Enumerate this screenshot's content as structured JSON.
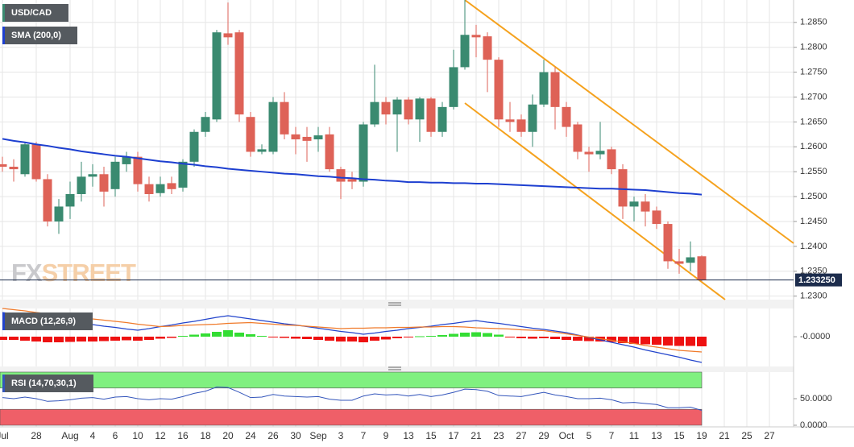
{
  "chart_data": [
    {
      "type": "candlestick",
      "title": "USD/CAD",
      "watermark": [
        "FX",
        "STREET"
      ],
      "categories": [
        "Jul",
        null,
        null,
        "28",
        null,
        null,
        "Aug",
        null,
        "4",
        null,
        "6",
        null,
        "10",
        null,
        "12",
        null,
        "16",
        null,
        "18",
        null,
        "20",
        null,
        "24",
        null,
        "26",
        null,
        "30",
        null,
        "Sep",
        null,
        "3",
        null,
        "7",
        null,
        "9",
        null,
        "13",
        null,
        "15",
        null,
        "17",
        null,
        "21",
        null,
        "23",
        null,
        "27",
        null,
        "29",
        null,
        "Oct",
        null,
        "5",
        null,
        "7",
        null,
        "11",
        null,
        "13",
        null,
        "15",
        null,
        "19",
        null,
        "21",
        null,
        "25",
        null,
        "27"
      ],
      "open": [
        1.2565,
        1.256,
        1.2545,
        1.2605,
        1.2535,
        1.245,
        1.248,
        1.2505,
        1.254,
        1.2545,
        1.2515,
        1.2565,
        1.258,
        1.2525,
        1.2507,
        1.2527,
        1.2518,
        1.257,
        1.263,
        1.2655,
        1.2828,
        1.283,
        1.266,
        1.259,
        1.259,
        1.269,
        1.2625,
        1.262,
        1.2615,
        1.2625,
        1.2555,
        1.2535,
        1.253,
        1.2645,
        1.269,
        1.2665,
        1.2695,
        1.2655,
        1.2697,
        1.263,
        1.268,
        1.276,
        1.2825,
        1.2822,
        1.2775,
        1.2655,
        1.2655,
        1.263,
        1.2685,
        1.275,
        1.268,
        1.2645,
        1.259,
        1.2585,
        1.2595,
        1.2555,
        1.248,
        1.249,
        1.2472,
        1.2445,
        1.237,
        1.2367,
        1.238,
        null,
        null,
        null,
        null,
        null,
        null
      ],
      "high": [
        1.258,
        1.2575,
        1.261,
        1.261,
        1.2545,
        1.2495,
        1.253,
        1.257,
        1.2565,
        1.256,
        1.258,
        1.259,
        1.259,
        1.254,
        1.254,
        1.254,
        1.2575,
        1.2635,
        1.267,
        1.2835,
        1.289,
        1.2835,
        1.267,
        1.2605,
        1.27,
        1.271,
        1.264,
        1.264,
        1.264,
        1.264,
        1.256,
        1.255,
        1.265,
        1.2765,
        1.27,
        1.27,
        1.27,
        1.27,
        1.27,
        1.269,
        1.2795,
        1.2895,
        1.2845,
        1.283,
        1.278,
        1.269,
        1.2665,
        1.2705,
        1.2775,
        1.276,
        1.269,
        1.265,
        1.26,
        1.265,
        1.26,
        1.2565,
        1.25,
        1.2505,
        1.248,
        1.245,
        1.2395,
        1.241,
        1.2382,
        null,
        null,
        null,
        null,
        null,
        null
      ],
      "low": [
        1.255,
        1.253,
        1.254,
        1.253,
        1.244,
        1.2425,
        1.2455,
        1.249,
        1.252,
        1.248,
        1.25,
        1.255,
        1.251,
        1.249,
        1.25,
        1.2505,
        1.251,
        1.256,
        1.262,
        1.265,
        1.2805,
        1.265,
        1.258,
        1.2585,
        1.2585,
        1.2615,
        1.2585,
        1.257,
        1.259,
        1.255,
        1.2495,
        1.2515,
        1.252,
        1.264,
        1.2645,
        1.259,
        1.2645,
        1.261,
        1.262,
        1.262,
        1.2675,
        1.2755,
        1.278,
        1.271,
        1.264,
        1.263,
        1.262,
        1.26,
        1.268,
        1.2635,
        1.262,
        1.2575,
        1.255,
        1.2575,
        1.2545,
        1.2455,
        1.245,
        1.244,
        1.2435,
        1.2355,
        1.2345,
        1.235,
        1.233,
        null,
        null,
        null,
        null,
        null,
        null
      ],
      "close": [
        1.256,
        1.2555,
        1.2605,
        1.2535,
        1.245,
        1.248,
        1.2505,
        1.254,
        1.2545,
        1.251,
        1.257,
        1.258,
        1.2525,
        1.2505,
        1.2525,
        1.2515,
        1.257,
        1.263,
        1.266,
        1.283,
        1.282,
        1.2665,
        1.259,
        1.2595,
        1.269,
        1.2625,
        1.2615,
        1.2612,
        1.2623,
        1.2555,
        1.253,
        1.253,
        1.2645,
        1.269,
        1.2665,
        1.2695,
        1.2655,
        1.2697,
        1.263,
        1.268,
        1.276,
        1.2825,
        1.282,
        1.2775,
        1.2655,
        1.265,
        1.263,
        1.2685,
        1.275,
        1.268,
        1.264,
        1.259,
        1.2585,
        1.2592,
        1.2555,
        1.248,
        1.249,
        1.247,
        1.2445,
        1.237,
        1.2365,
        1.2378,
        1.23325,
        null,
        null,
        null,
        null,
        null,
        null
      ],
      "up_color": "#3a8a70",
      "down_color": "#de6257",
      "series": [
        {
          "name": "SMA (200,0)",
          "color": "#1d3fd0",
          "values": [
            1.2616,
            1.2612,
            1.2609,
            1.2605,
            1.2602,
            1.2598,
            1.2595,
            1.2591,
            1.2588,
            1.2585,
            1.2582,
            1.258,
            1.2577,
            1.2574,
            1.2571,
            1.2569,
            1.2566,
            1.2564,
            1.2561,
            1.2559,
            1.2556,
            1.2554,
            1.2552,
            1.255,
            1.2548,
            1.2546,
            1.2545,
            1.2543,
            1.2541,
            1.254,
            1.2538,
            1.2537,
            1.2535,
            1.2534,
            1.2532,
            1.2531,
            1.2529,
            1.2529,
            1.2528,
            1.2528,
            1.2527,
            1.2527,
            1.2526,
            1.2526,
            1.2525,
            1.2524,
            1.2523,
            1.2522,
            1.2521,
            1.252,
            1.2519,
            1.2518,
            1.2517,
            1.2516,
            1.2516,
            1.2515,
            1.2514,
            1.2513,
            1.2511,
            1.2509,
            1.2507,
            1.2506,
            1.2504,
            null,
            null,
            null,
            null,
            null,
            null
          ]
        }
      ],
      "last_price": {
        "value": 1.23325,
        "label": "1.233250"
      },
      "ylim": [
        1.2293,
        1.2895
      ],
      "yticks": [
        {
          "value": 1.23,
          "label": "1.2300"
        },
        {
          "value": 1.235,
          "label": "1.2350"
        },
        {
          "value": 1.24,
          "label": "1.2400"
        },
        {
          "value": 1.245,
          "label": "1.2450"
        },
        {
          "value": 1.25,
          "label": "1.2500"
        },
        {
          "value": 1.255,
          "label": "1.2550"
        },
        {
          "value": 1.26,
          "label": "1.2600"
        },
        {
          "value": 1.265,
          "label": "1.2650"
        },
        {
          "value": 1.27,
          "label": "1.2700"
        },
        {
          "value": 1.275,
          "label": "1.2750"
        },
        {
          "value": 1.28,
          "label": "1.2800"
        },
        {
          "value": 1.285,
          "label": "1.2850"
        }
      ],
      "grid": true
    },
    {
      "type": "macd",
      "title": "MACD (12,26,9)",
      "histogram": {
        "up_color": "#33dd33",
        "down_color": "#ee1111",
        "values": [
          -0.0008,
          -0.0008,
          -0.001,
          -0.0012,
          -0.0014,
          -0.0014,
          -0.0013,
          -0.0012,
          -0.0012,
          -0.0011,
          -0.001,
          -0.0009,
          -0.001,
          -0.0008,
          -0.0005,
          -0.0003,
          0.0002,
          0.0005,
          0.0008,
          0.0012,
          0.0016,
          0.001,
          0.0006,
          0.0002,
          -0.0001,
          -0.0003,
          -0.0005,
          -0.0006,
          -0.0008,
          -0.001,
          -0.0012,
          -0.0012,
          -0.0014,
          -0.001,
          -0.0007,
          -0.0004,
          -0.0002,
          0.0001,
          0.0002,
          0.0004,
          0.0007,
          0.001,
          0.0011,
          0.0009,
          0.0005,
          -0.0002,
          -0.0004,
          -0.0005,
          -0.0004,
          -0.0006,
          -0.0008,
          -0.001,
          -0.0011,
          -0.0012,
          -0.0013,
          -0.0016,
          -0.0018,
          -0.0019,
          -0.002,
          -0.0022,
          -0.0023,
          -0.0023,
          -0.0024,
          null,
          null,
          null,
          null,
          null,
          null
        ]
      },
      "series": [
        {
          "color": "#2244cc",
          "values": [
            0.006,
            0.0056,
            0.0052,
            0.0049,
            0.0045,
            0.0041,
            0.0037,
            0.0034,
            0.003,
            0.0026,
            0.0023,
            0.0019,
            0.0016,
            0.002,
            0.0025,
            0.0029,
            0.0034,
            0.0038,
            0.0043,
            0.0048,
            0.0052,
            0.0048,
            0.0044,
            0.004,
            0.0036,
            0.0032,
            0.0029,
            0.0025,
            0.0021,
            0.0017,
            0.0013,
            0.001,
            0.0006,
            0.0009,
            0.0013,
            0.0016,
            0.002,
            0.0023,
            0.0026,
            0.003,
            0.0033,
            0.0037,
            0.004,
            0.0036,
            0.0033,
            0.0029,
            0.0025,
            0.0021,
            0.0018,
            0.0014,
            0.001,
            0.0004,
            -0.0002,
            -0.0008,
            -0.0014,
            -0.002,
            -0.0026,
            -0.0033,
            -0.0039,
            -0.0045,
            -0.0051,
            -0.0058,
            -0.0064,
            null,
            null,
            null,
            null,
            null,
            null
          ]
        },
        {
          "color": "#f07a2a",
          "values": [
            0.007,
            0.0067,
            0.0064,
            0.006,
            0.0057,
            0.0054,
            0.0051,
            0.0048,
            0.0044,
            0.0041,
            0.0038,
            0.0035,
            0.0031,
            0.0028,
            0.0025,
            0.0026,
            0.0028,
            0.0029,
            0.003,
            0.0031,
            0.0033,
            0.0034,
            0.0035,
            0.0033,
            0.0031,
            0.0029,
            0.0028,
            0.0026,
            0.0024,
            0.0022,
            0.002,
            0.0021,
            0.0021,
            0.0022,
            0.0022,
            0.0023,
            0.0023,
            0.0024,
            0.0024,
            0.0025,
            0.0025,
            0.0024,
            0.0022,
            0.0021,
            0.002,
            0.0019,
            0.0017,
            0.0016,
            0.0015,
            0.0011,
            0.0007,
            0.0003,
            -0.0001,
            -0.0005,
            -0.0009,
            -0.0013,
            -0.0017,
            -0.0022,
            -0.0026,
            -0.003,
            -0.0034,
            -0.0036,
            -0.0038,
            null,
            null,
            null,
            null,
            null,
            null
          ]
        }
      ],
      "ylim": [
        -0.0074,
        0.007
      ],
      "yticks": [
        {
          "value": -2e-05,
          "label": "-0.0000"
        }
      ]
    },
    {
      "type": "rsi",
      "title": "RSI (14,70,30,1)",
      "bands": [
        {
          "from": 70,
          "to": 100,
          "color": "#80f080"
        },
        {
          "from": 0,
          "to": 30,
          "color": "#ef5f68"
        }
      ],
      "series": [
        {
          "color": "#3355bb",
          "values": [
            52,
            50,
            53,
            50,
            45,
            46,
            48,
            51,
            52,
            49,
            53,
            54,
            50,
            48,
            50,
            49,
            54,
            60,
            64,
            72,
            71,
            62,
            52,
            53,
            58,
            55,
            54,
            53,
            54,
            49,
            47,
            47,
            55,
            59,
            57,
            58,
            55,
            58,
            54,
            57,
            62,
            68,
            67,
            64,
            56,
            55,
            54,
            58,
            62,
            57,
            54,
            50,
            50,
            51,
            48,
            42,
            43,
            41,
            39,
            33,
            33,
            34,
            28,
            null,
            null,
            null,
            null,
            null,
            null
          ]
        }
      ],
      "ylim": [
        0,
        100
      ],
      "yticks": [
        {
          "value": 50,
          "label": "50.0000"
        },
        {
          "value": 0,
          "label": "0.0000"
        }
      ]
    }
  ]
}
